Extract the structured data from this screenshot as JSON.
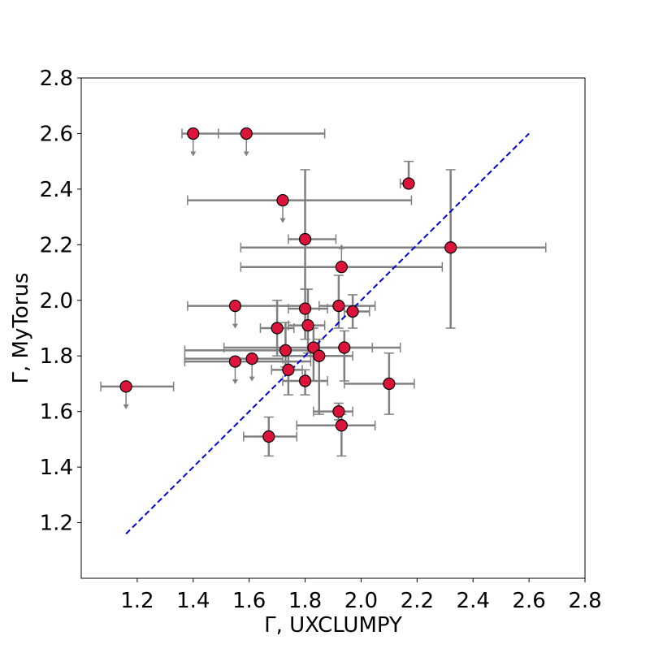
{
  "chart_data": {
    "type": "scatter",
    "title": "",
    "xlabel": "Γ, UXCLUMPY",
    "ylabel": "Γ, MyTorus",
    "xlim": [
      1.0,
      2.8
    ],
    "ylim": [
      1.0,
      2.8
    ],
    "xticks": [
      "1.2",
      "1.4",
      "1.6",
      "1.8",
      "2.0",
      "2.2",
      "2.4",
      "2.6",
      "2.8"
    ],
    "yticks": [
      "1.2",
      "1.4",
      "1.6",
      "1.8",
      "2.0",
      "2.2",
      "2.4",
      "2.6",
      "2.8"
    ],
    "grid": false,
    "reference_line": {
      "style": "dashed",
      "color": "#0000dd",
      "x": [
        1.16,
        2.6
      ],
      "y": [
        1.16,
        2.6
      ]
    },
    "marker_color": "#dc143c",
    "errorbar_color": "#808080",
    "points": [
      {
        "x": 1.4,
        "y": 2.6,
        "xerr": [
          0.04,
          0.09
        ],
        "upper_limit": true
      },
      {
        "x": 1.59,
        "y": 2.6,
        "xerr": [
          0.1,
          0.28
        ],
        "upper_limit": true
      },
      {
        "x": 2.17,
        "y": 2.42,
        "xerr": [
          0.03,
          0.0
        ],
        "yerr": [
          0.0,
          0.08
        ]
      },
      {
        "x": 1.72,
        "y": 2.36,
        "xerr": [
          0.34,
          0.46
        ],
        "upper_limit": true
      },
      {
        "x": 1.8,
        "y": 2.22,
        "xerr": [
          0.06,
          0.11
        ],
        "yerr": [
          0.18,
          0.25
        ]
      },
      {
        "x": 2.32,
        "y": 2.19,
        "xerr": [
          0.75,
          0.34
        ],
        "yerr": [
          0.29,
          0.28
        ]
      },
      {
        "x": 1.93,
        "y": 2.12,
        "xerr": [
          0.36,
          0.36
        ],
        "lower_limit": true
      },
      {
        "x": 1.55,
        "y": 1.98,
        "xerr": [
          0.17,
          0.25
        ],
        "upper_limit": true
      },
      {
        "x": 1.8,
        "y": 1.97,
        "xerr": [
          0.06,
          0.08
        ],
        "yerr": [
          0.11,
          0.07
        ]
      },
      {
        "x": 1.92,
        "y": 1.98,
        "xerr": [
          0.07,
          0.13
        ],
        "yerr": [
          0.08,
          0.11
        ]
      },
      {
        "x": 1.97,
        "y": 1.96,
        "xerr": [
          0.03,
          0.06
        ],
        "yerr": [
          0.06,
          0.06
        ]
      },
      {
        "x": 1.7,
        "y": 1.9,
        "xerr": [
          0.06,
          0.06
        ],
        "yerr": [
          0.1,
          0.1
        ]
      },
      {
        "x": 1.81,
        "y": 1.91,
        "xerr": [
          0.07,
          0.06
        ],
        "yerr": [
          0.1,
          0.13
        ]
      },
      {
        "x": 1.73,
        "y": 1.82,
        "xerr": [
          0.36,
          0.09
        ],
        "yerr": [
          0.06,
          0.1
        ]
      },
      {
        "x": 1.83,
        "y": 1.83,
        "xerr": [
          0.32,
          0.31
        ],
        "yerr": [
          0.12,
          0.07
        ]
      },
      {
        "x": 1.85,
        "y": 1.8,
        "xerr": [
          0.13,
          0.12
        ],
        "yerr": [
          0.21,
          0.06
        ]
      },
      {
        "x": 1.94,
        "y": 1.83,
        "xerr": [
          0.11,
          0.1
        ],
        "yerr": [
          0.12,
          0.06
        ]
      },
      {
        "x": 1.55,
        "y": 1.78,
        "xerr": [
          0.18,
          0.27
        ],
        "upper_limit": true
      },
      {
        "x": 1.61,
        "y": 1.79,
        "xerr": [
          0.24,
          0.11
        ],
        "upper_limit": true
      },
      {
        "x": 1.74,
        "y": 1.75,
        "xerr": [
          0.06,
          0.05
        ],
        "yerr": [
          0.09,
          0.05
        ]
      },
      {
        "x": 1.8,
        "y": 1.71,
        "xerr": [
          0.08,
          0.08
        ],
        "yerr": [
          0.05,
          0.04
        ]
      },
      {
        "x": 2.1,
        "y": 1.7,
        "xerr": [
          0.16,
          0.09
        ],
        "yerr": [
          0.11,
          0.11
        ]
      },
      {
        "x": 1.16,
        "y": 1.69,
        "xerr": [
          0.09,
          0.17
        ],
        "upper_limit": true
      },
      {
        "x": 1.92,
        "y": 1.6,
        "xerr": [
          0.09,
          0.05
        ],
        "yerr": [
          0.03,
          0.03
        ]
      },
      {
        "x": 1.93,
        "y": 1.55,
        "xerr": [
          0.16,
          0.12
        ],
        "yerr": [
          0.11,
          0.04
        ]
      },
      {
        "x": 1.67,
        "y": 1.51,
        "xerr": [
          0.09,
          0.1
        ],
        "yerr": [
          0.07,
          0.07
        ]
      }
    ]
  }
}
